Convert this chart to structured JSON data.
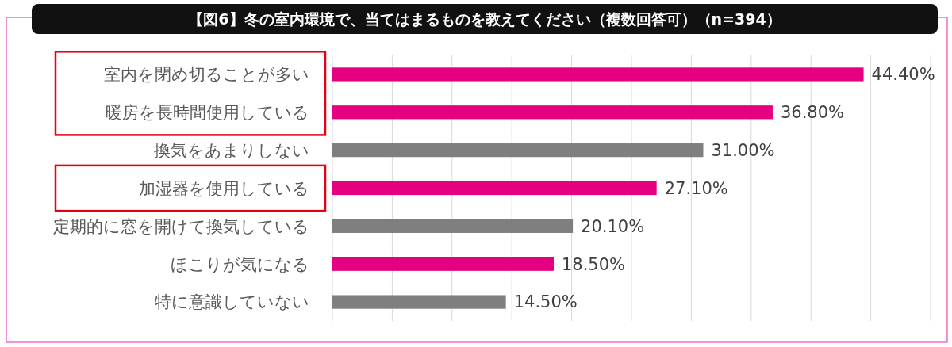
{
  "chart_data": {
    "type": "bar",
    "orientation": "horizontal",
    "title": "【図6】冬の室内環境で、当てはまるものを教えてください（複数回答可）（n=394）",
    "categories": [
      "室内を閉め切ることが多い",
      "暖房を長時間使用している",
      "換気をあまりしない",
      "加湿器を使用している",
      "定期的に窓を開けて換気している",
      "ほこりが気になる",
      "特に意識していない"
    ],
    "values": [
      44.4,
      36.8,
      31.0,
      27.1,
      20.1,
      18.5,
      14.5
    ],
    "value_labels": [
      "44.40%",
      "36.80%",
      "31.00%",
      "27.10%",
      "20.10%",
      "18.50%",
      "14.50%"
    ],
    "colors": [
      "#e4007f",
      "#e4007f",
      "#7f7f7f",
      "#e4007f",
      "#7f7f7f",
      "#e4007f",
      "#7f7f7f"
    ],
    "xlim": [
      0,
      50
    ],
    "xticks": [
      {
        "value": 0,
        "label": null
      },
      {
        "value": 5,
        "label": null
      },
      {
        "value": 10,
        "label": null
      },
      {
        "value": 15,
        "label": null
      },
      {
        "value": 20,
        "label": null
      },
      {
        "value": 25,
        "label": null
      },
      {
        "value": 30,
        "label": null
      },
      {
        "value": 35,
        "label": null
      },
      {
        "value": 40,
        "label": null
      },
      {
        "value": 45,
        "label": null
      },
      {
        "value": 50,
        "label": null
      }
    ],
    "grid": "x"
  }
}
